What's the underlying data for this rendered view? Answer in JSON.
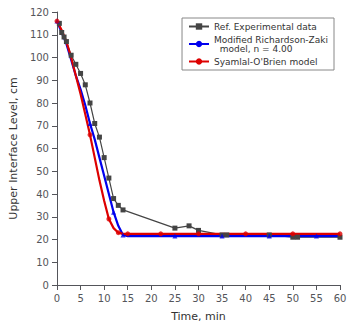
{
  "chart_data": {
    "type": "line",
    "xlabel": "Time, min",
    "ylabel": "Upper Interface Level, cm",
    "xlim": [
      0,
      60
    ],
    "ylim": [
      0,
      120
    ],
    "xticks": [
      0,
      5,
      10,
      15,
      20,
      25,
      30,
      35,
      40,
      45,
      50,
      55,
      60
    ],
    "yticks": [
      0,
      10,
      20,
      30,
      40,
      50,
      60,
      70,
      80,
      90,
      100,
      110,
      120
    ],
    "grid": false,
    "legend": "upper right",
    "series": [
      {
        "name": "Ref. Experimental data",
        "type": "line",
        "color": "#444444",
        "marker": "square",
        "x": [
          0.5,
          1,
          1.5,
          2,
          3,
          4,
          5,
          6,
          7,
          8,
          9,
          10,
          11,
          12,
          13,
          14,
          25,
          28,
          30,
          35,
          36,
          45,
          50,
          51,
          60
        ],
        "values": [
          115,
          111,
          109,
          107,
          101,
          97,
          93,
          88,
          80,
          71,
          65,
          56,
          47,
          38,
          35,
          33,
          25,
          26,
          24,
          22,
          22,
          22,
          21,
          21,
          21
        ]
      },
      {
        "name": "Modified Richardson-Zaki\n  model, n = 4.00",
        "type": "line",
        "color": "#0000ee",
        "x": [
          0,
          1,
          2,
          3,
          4,
          5,
          6,
          7,
          8,
          9,
          10,
          11,
          12,
          13,
          14,
          15,
          20,
          25,
          30,
          35,
          40,
          45,
          50,
          55,
          60
        ],
        "values": [
          116,
          111,
          106,
          99,
          92,
          86,
          79,
          71,
          64,
          56,
          48,
          40,
          32,
          26,
          22,
          21.5,
          21.5,
          21.5,
          21.5,
          21.5,
          21.5,
          21.5,
          21.5,
          21.5,
          21.5
        ]
      },
      {
        "type": "scatter",
        "color": "#0000ee",
        "marker": "triangle",
        "x": [
          0,
          7,
          12,
          14,
          25,
          35,
          45,
          55
        ],
        "values": [
          116,
          71,
          32,
          22,
          21.5,
          21.5,
          21.5,
          21.5
        ]
      },
      {
        "name": "Syamlal-O'Brien model",
        "type": "line",
        "color": "#dd0000",
        "x": [
          0,
          1,
          2,
          3,
          4,
          5,
          6,
          7,
          8,
          9,
          10,
          11,
          12,
          13,
          14,
          15,
          20,
          22,
          25,
          30,
          35,
          40,
          45,
          50,
          55,
          60
        ],
        "values": [
          116,
          112,
          107,
          100,
          92,
          84,
          75,
          66,
          56,
          46,
          37,
          29,
          25,
          23,
          22.5,
          22.5,
          22.5,
          22.5,
          22.5,
          22.5,
          22.5,
          22.5,
          22.5,
          22.5,
          22.5,
          22.5
        ]
      },
      {
        "type": "scatter",
        "color": "#dd0000",
        "marker": "circle",
        "x": [
          0,
          7,
          11,
          13,
          15,
          22,
          30,
          40,
          50,
          60
        ],
        "values": [
          116,
          66,
          29,
          23,
          22.5,
          22.5,
          22.5,
          22.5,
          22.5,
          22.5
        ]
      }
    ]
  }
}
